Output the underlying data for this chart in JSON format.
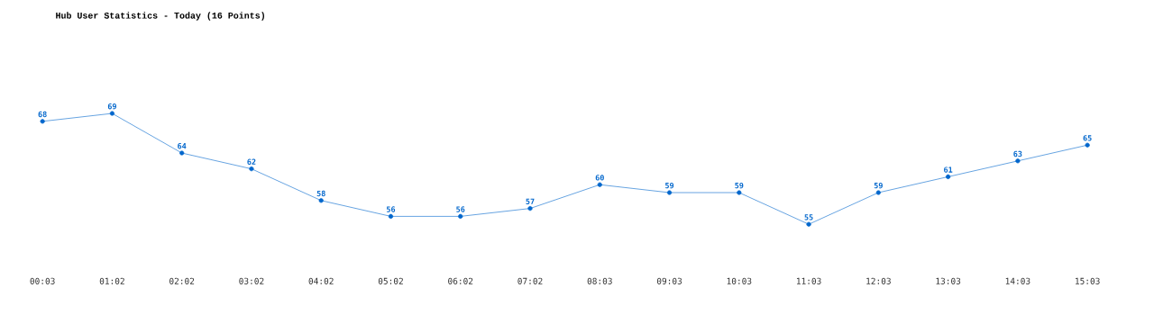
{
  "chart_data": {
    "type": "line",
    "title": "Hub User Statistics - Today (16 Points)",
    "categories": [
      "00:03",
      "01:02",
      "02:02",
      "03:02",
      "04:02",
      "05:02",
      "06:02",
      "07:02",
      "08:03",
      "09:03",
      "10:03",
      "11:03",
      "12:03",
      "13:03",
      "14:03",
      "15:03"
    ],
    "values": [
      68,
      69,
      64,
      62,
      58,
      56,
      56,
      57,
      60,
      59,
      59,
      55,
      59,
      61,
      63,
      65
    ],
    "color": "#0066cc",
    "marker": "circle",
    "data_labels": true,
    "tick_labels": "x"
  }
}
